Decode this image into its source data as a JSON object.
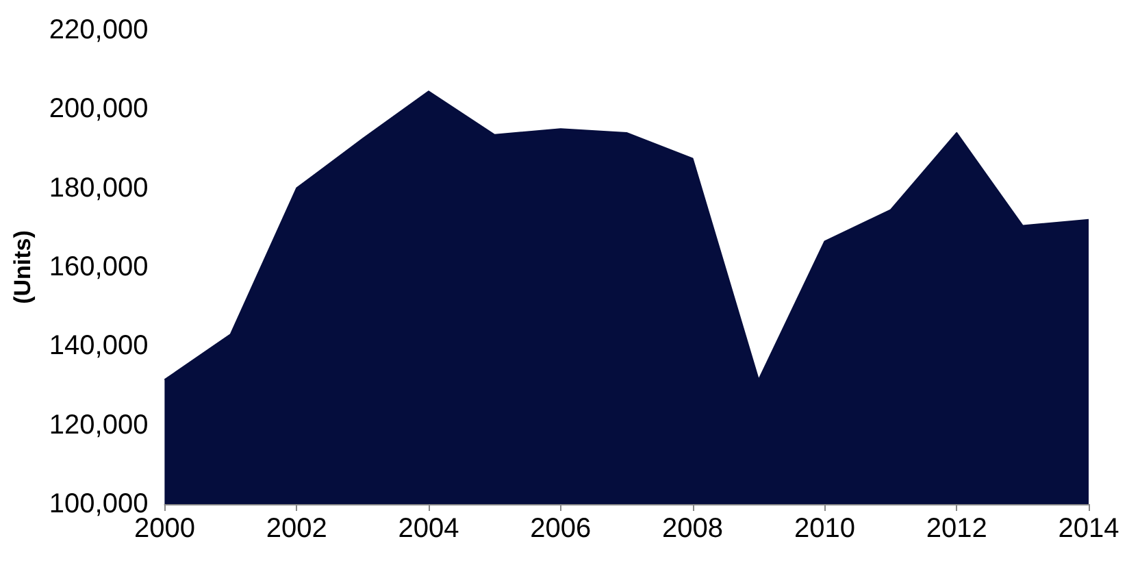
{
  "chart_data": {
    "type": "area",
    "ylabel": "(Units)",
    "x": [
      2000,
      2001,
      2002,
      2003,
      2004,
      2005,
      2006,
      2007,
      2008,
      2009,
      2010,
      2011,
      2012,
      2013,
      2014
    ],
    "series": [
      {
        "color": "#050d3d",
        "values": [
          131500,
          143000,
          180000,
          192500,
          204500,
          193500,
          195000,
          194000,
          187500,
          131500,
          166500,
          174500,
          194000,
          170500,
          172000
        ]
      }
    ],
    "xlim": [
      2000,
      2014
    ],
    "xticks": [
      2000,
      2002,
      2004,
      2006,
      2008,
      2010,
      2012,
      2014
    ],
    "ylim": [
      100000,
      220000
    ],
    "yticks": [
      {
        "value": 100000,
        "label": "100,000"
      },
      {
        "value": 120000,
        "label": "120,000"
      },
      {
        "value": 140000,
        "label": "140,000"
      },
      {
        "value": 160000,
        "label": "160,000"
      },
      {
        "value": 180000,
        "label": "180,000"
      },
      {
        "value": 200000,
        "label": "200,000"
      },
      {
        "value": 220000,
        "label": "220,000"
      }
    ],
    "grid": false,
    "marker": "none"
  }
}
